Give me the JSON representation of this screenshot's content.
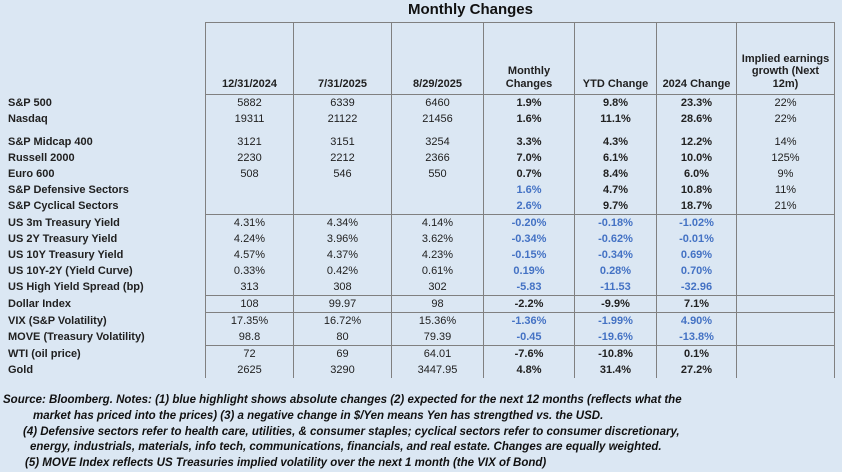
{
  "chart_data": {
    "type": "table",
    "title": "Monthly Changes",
    "columns": [
      "12/31/2024",
      "7/31/2025",
      "8/29/2025",
      "Monthly Changes",
      "YTD Change",
      "2024 Change",
      "Implied earnings growth (Next 12m)"
    ],
    "rows": [
      {
        "label": "S&P 500",
        "values": [
          "5882",
          "6339",
          "6460",
          "1.9%",
          "9.8%",
          "23.3%",
          "22%"
        ],
        "blue": []
      },
      {
        "label": "Nasdaq",
        "values": [
          "19311",
          "21122",
          "21456",
          "1.6%",
          "11.1%",
          "28.6%",
          "22%"
        ],
        "blue": [],
        "spacer_after": true
      },
      {
        "label": "S&P Midcap 400",
        "values": [
          "3121",
          "3151",
          "3254",
          "3.3%",
          "4.3%",
          "12.2%",
          "14%"
        ],
        "blue": []
      },
      {
        "label": "Russell 2000",
        "values": [
          "2230",
          "2212",
          "2366",
          "7.0%",
          "6.1%",
          "10.0%",
          "125%"
        ],
        "blue": []
      },
      {
        "label": "Euro 600",
        "values": [
          "508",
          "546",
          "550",
          "0.7%",
          "8.4%",
          "6.0%",
          "9%"
        ],
        "blue": []
      },
      {
        "label": "S&P Defensive Sectors",
        "values": [
          "",
          "",
          "",
          "1.6%",
          "4.7%",
          "10.8%",
          "11%"
        ],
        "blue": [
          3
        ]
      },
      {
        "label": "S&P Cyclical Sectors",
        "values": [
          "",
          "",
          "",
          "2.6%",
          "9.7%",
          "18.7%",
          "21%"
        ],
        "blue": [
          3
        ],
        "group_end": true
      },
      {
        "label": "US 3m Treasury Yield",
        "values": [
          "4.31%",
          "4.34%",
          "4.14%",
          "-0.20%",
          "-0.18%",
          "-1.02%",
          ""
        ],
        "blue": [
          3,
          4,
          5
        ]
      },
      {
        "label": "US 2Y Treasury Yield",
        "values": [
          "4.24%",
          "3.96%",
          "3.62%",
          "-0.34%",
          "-0.62%",
          "-0.01%",
          ""
        ],
        "blue": [
          3,
          4,
          5
        ]
      },
      {
        "label": "US 10Y Treasury Yield",
        "values": [
          "4.57%",
          "4.37%",
          "4.23%",
          "-0.15%",
          "-0.34%",
          "0.69%",
          ""
        ],
        "blue": [
          3,
          4,
          5
        ]
      },
      {
        "label": "US 10Y-2Y (Yield Curve)",
        "values": [
          "0.33%",
          "0.42%",
          "0.61%",
          "0.19%",
          "0.28%",
          "0.70%",
          ""
        ],
        "blue": [
          3,
          4,
          5
        ]
      },
      {
        "label": "US High Yield Spread (bp)",
        "values": [
          "313",
          "308",
          "302",
          "-5.83",
          "-11.53",
          "-32.96",
          ""
        ],
        "blue": [
          3,
          4,
          5
        ],
        "group_end": true
      },
      {
        "label": "Dollar Index",
        "values": [
          "108",
          "99.97",
          "98",
          "-2.2%",
          "-9.9%",
          "7.1%",
          ""
        ],
        "blue": [],
        "group_end": true
      },
      {
        "label": "VIX (S&P Volatility)",
        "values": [
          "17.35%",
          "16.72%",
          "15.36%",
          "-1.36%",
          "-1.99%",
          "4.90%",
          ""
        ],
        "blue": [
          3,
          4,
          5
        ]
      },
      {
        "label": "MOVE (Treasury Volatility)",
        "values": [
          "98.8",
          "80",
          "79.39",
          "-0.45",
          "-19.6%",
          "-13.8%",
          ""
        ],
        "blue": [
          3,
          4,
          5
        ],
        "group_end": true
      },
      {
        "label": "WTI (oil price)",
        "values": [
          "72",
          "69",
          "64.01",
          "-7.6%",
          "-10.8%",
          "0.1%",
          ""
        ],
        "blue": []
      },
      {
        "label": "Gold",
        "values": [
          "2625",
          "3290",
          "3447.95",
          "4.8%",
          "31.4%",
          "27.2%",
          ""
        ],
        "blue": []
      }
    ]
  },
  "notes": {
    "lines": [
      "Source: Bloomberg. Notes: (1) blue highlight shows absolute changes (2) expected for the next 12 months (reflects what the",
      "market has priced into the prices) (3) a negative change in $/Yen means Yen has strengthed vs. the USD.",
      "(4) Defensive sectors refer to health care, utilities, & consumer staples; cyclical sectors refer to consumer discretionary,",
      "energy, industrials, materials, info tech, communications, financials, and real estate. Changes are equally weighted.",
      "(5) MOVE Index reflects US Treasuries implied volatility over the next 1 month (the VIX of Bond)"
    ]
  },
  "colors": {
    "background": "#dbe7f3",
    "highlight_blue": "#4472c4",
    "text": "#212121",
    "grid_line": "#808080"
  }
}
